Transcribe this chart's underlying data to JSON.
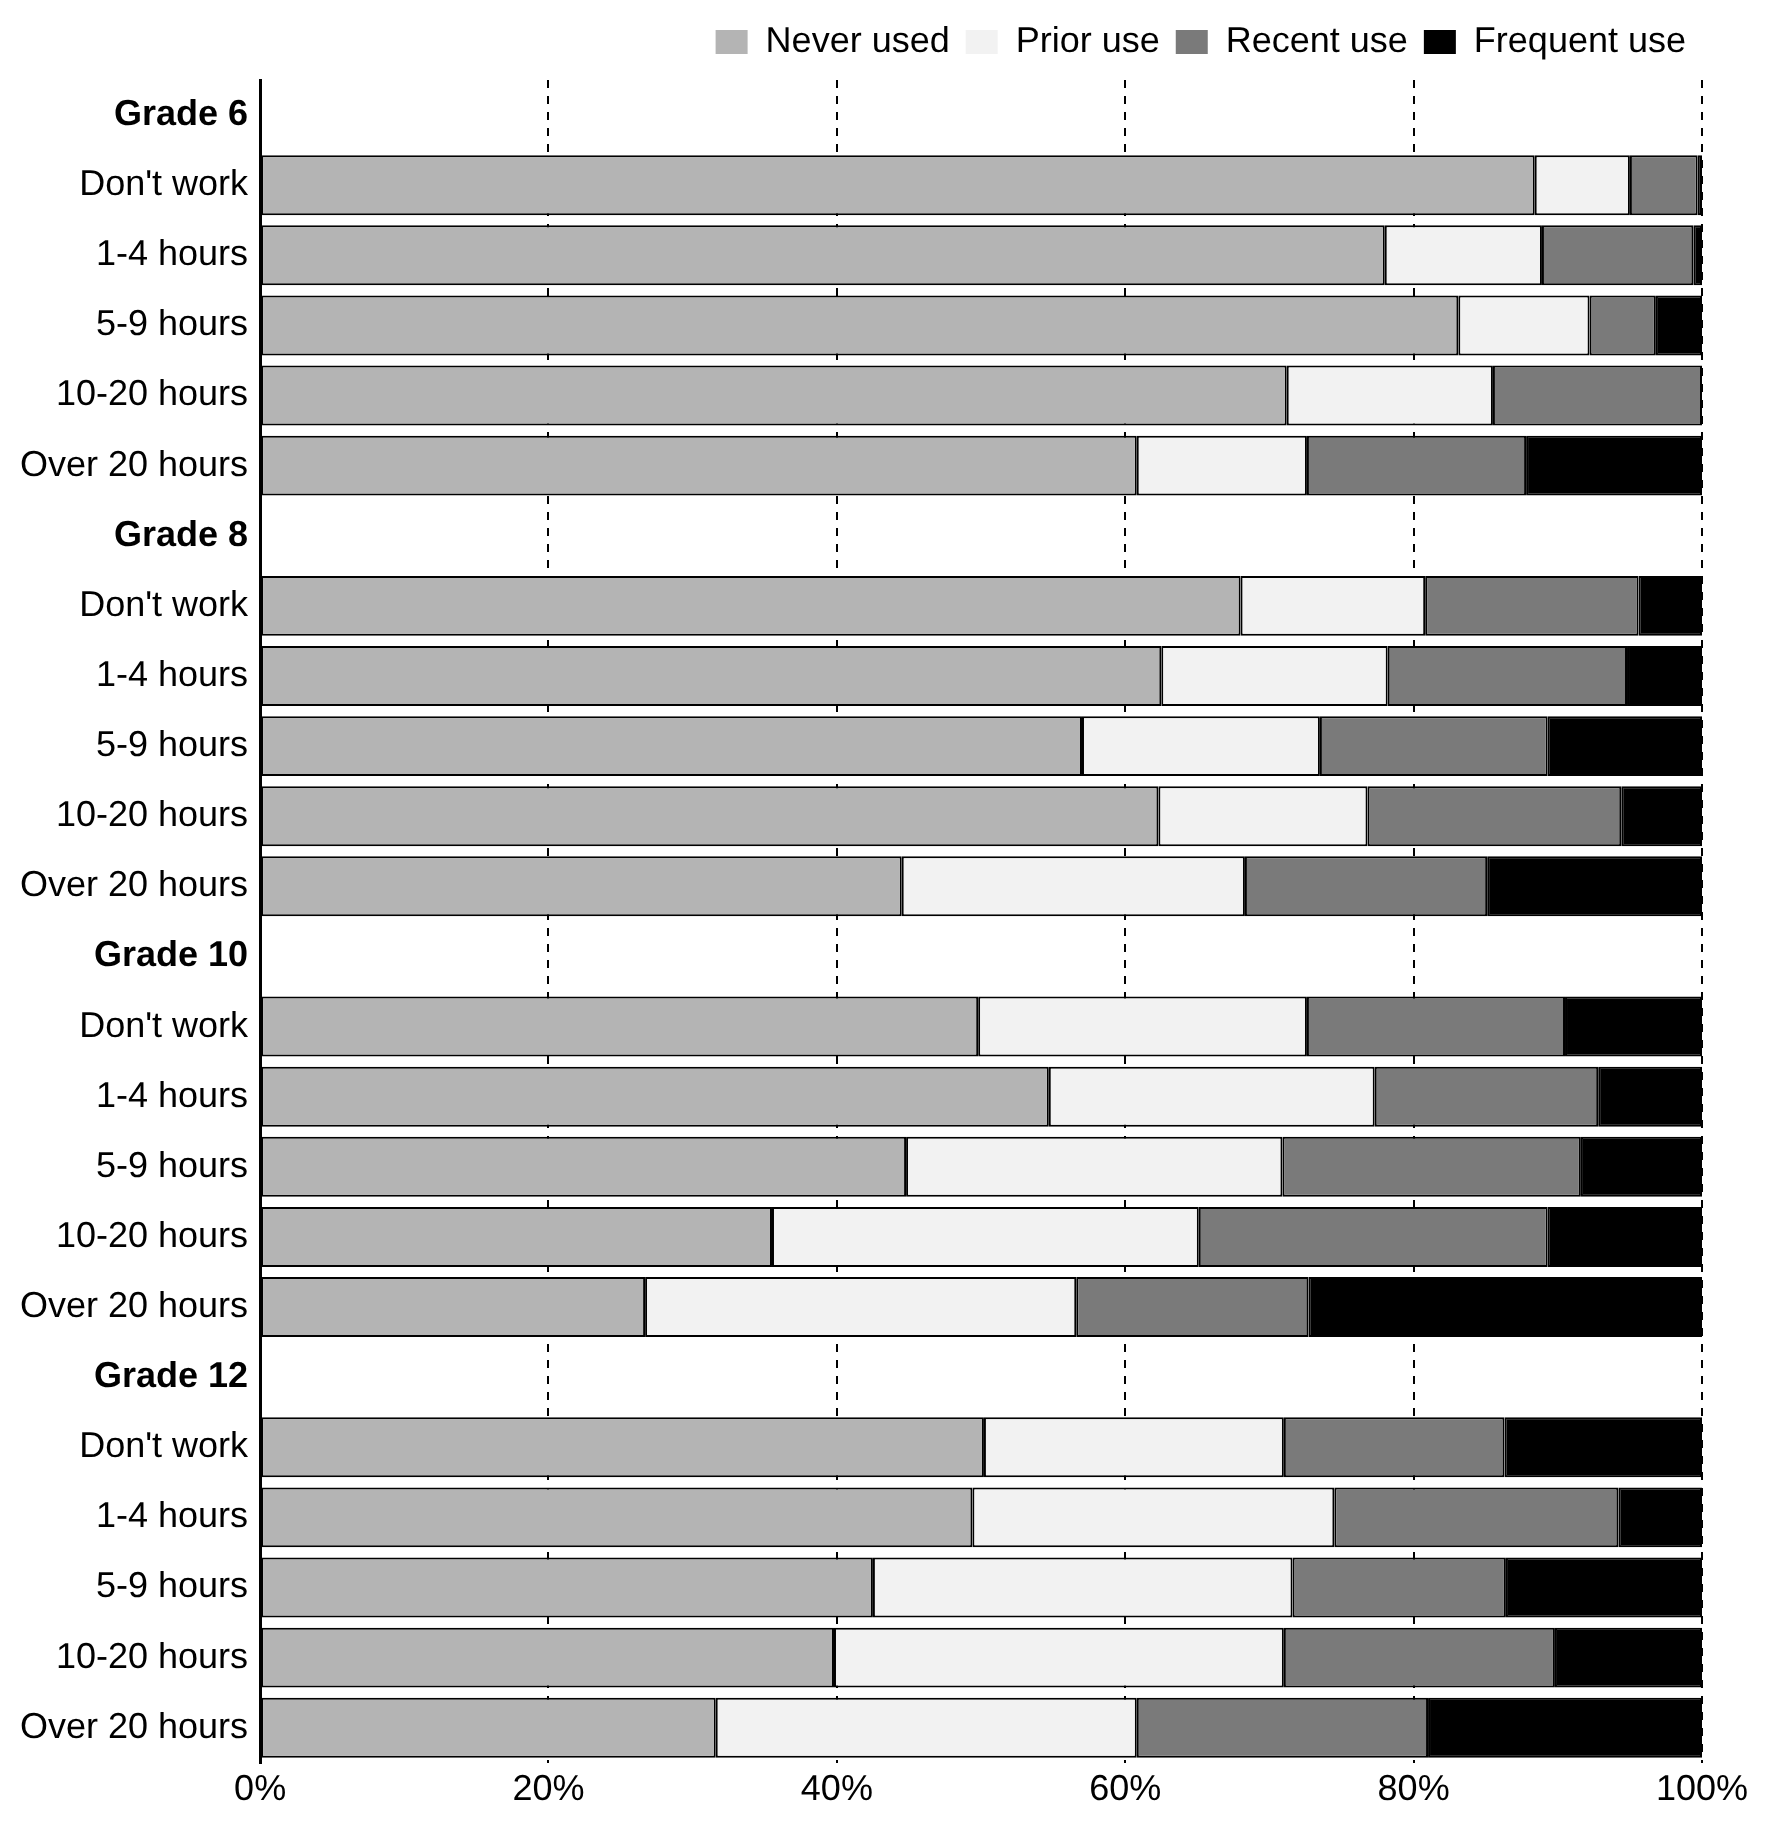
{
  "chart_data": {
    "type": "bar",
    "orientation": "horizontal",
    "stacked": true,
    "legend": "top",
    "grid": "x",
    "line_style": "dashed",
    "categories": [
      "Grade 6",
      "Don't work",
      "1-4 hours",
      "5-9 hours",
      "10-20 hours",
      "Over 20 hours",
      "Grade 8",
      "Don't work",
      "1-4 hours",
      "5-9 hours",
      "10-20 hours",
      "Over 20 hours",
      "Grade 10",
      "Don't work",
      "1-4 hours",
      "5-9 hours",
      "10-20 hours",
      "Over 20 hours",
      "Grade 12",
      "Don't work",
      "1-4 hours",
      "5-9 hours",
      "10-20 hours",
      "Over 20 hours"
    ],
    "xlim": [
      0,
      100
    ],
    "xticks": [
      {
        "value": 0,
        "label": "0%"
      },
      {
        "value": 20,
        "label": "20%"
      },
      {
        "value": 40,
        "label": "40%"
      },
      {
        "value": 60,
        "label": "60%"
      },
      {
        "value": 80,
        "label": "80%"
      },
      {
        "value": 100,
        "label": "100%"
      }
    ],
    "series": [
      {
        "name": "Never used",
        "color": "#b4b4b4",
        "values": [
          null,
          88.4,
          78,
          83.1,
          71.2,
          60.8,
          null,
          68,
          62.5,
          57,
          62.3,
          44.5,
          null,
          49.8,
          54.7,
          44.8,
          35.5,
          26.7,
          null,
          50.2,
          49.4,
          42.5,
          39.8,
          31.6
        ]
      },
      {
        "name": "Prior use",
        "color": "#f2f2f2",
        "values": [
          null,
          6.6,
          10.9,
          9.1,
          14.3,
          11.8,
          null,
          12.8,
          15.7,
          16.5,
          14.5,
          23.8,
          null,
          22.8,
          22.6,
          26.1,
          29.6,
          29.9,
          null,
          20.8,
          25.1,
          29.1,
          31.2,
          29.2
        ]
      },
      {
        "name": "Recent use",
        "color": "#7a7a7a",
        "values": [
          null,
          4.7,
          10.5,
          4.6,
          14.5,
          15.2,
          null,
          14.8,
          16.6,
          15.8,
          17.6,
          16.8,
          null,
          17.9,
          15.5,
          20.7,
          24.2,
          16.1,
          null,
          15.3,
          19.7,
          14.8,
          18.8,
          20.2
        ]
      },
      {
        "name": "Frequent use",
        "color": "#000000",
        "values": [
          null,
          0.3,
          0.6,
          3.2,
          0,
          12.2,
          null,
          4.4,
          5.2,
          10.7,
          5.6,
          14.9,
          null,
          9.5,
          7.2,
          8.4,
          10.7,
          27.3,
          null,
          13.7,
          5.8,
          13.6,
          10.2,
          19
        ]
      }
    ]
  }
}
